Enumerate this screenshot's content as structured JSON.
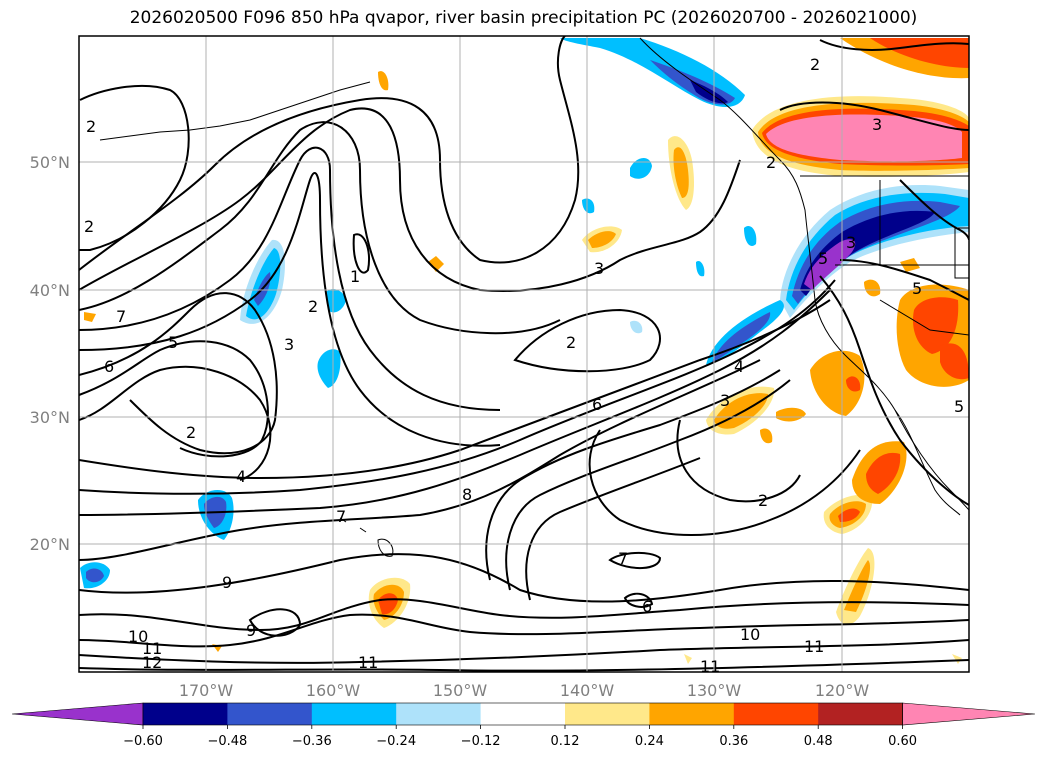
{
  "title": "2026020500 F096 850 hPa qvapor, river basin precipitation PC (2026020700 - 2026021000)",
  "lat_labels": [
    "50°N",
    "40°N",
    "30°N",
    "20°N"
  ],
  "lon_labels": [
    "170°W",
    "160°W",
    "150°W",
    "140°W",
    "130°W",
    "120°W"
  ],
  "colorbar": {
    "colors": [
      "#9932cc",
      "#00008b",
      "#3355cc",
      "#00bfff",
      "#aee2fa",
      "#ffffff",
      "#ffe88a",
      "#ffa500",
      "#ff4500",
      "#b22222",
      "#ff85b3"
    ],
    "ticks": [
      "−0.60",
      "−0.48",
      "−0.36",
      "−0.24",
      "−0.12",
      "0.12",
      "0.24",
      "0.36",
      "0.48",
      "0.60"
    ]
  },
  "contour_labels": [
    "2",
    "2",
    "3",
    "1",
    "2",
    "3",
    "2",
    "6",
    "5",
    "7",
    "2",
    "4",
    "3",
    "2",
    "6",
    "4",
    "7",
    "8",
    "3",
    "2",
    "9",
    "7",
    "6",
    "9",
    "10",
    "11",
    "12",
    "11",
    "10",
    "11",
    "11",
    "5",
    "5",
    "5",
    "2",
    "3"
  ]
}
